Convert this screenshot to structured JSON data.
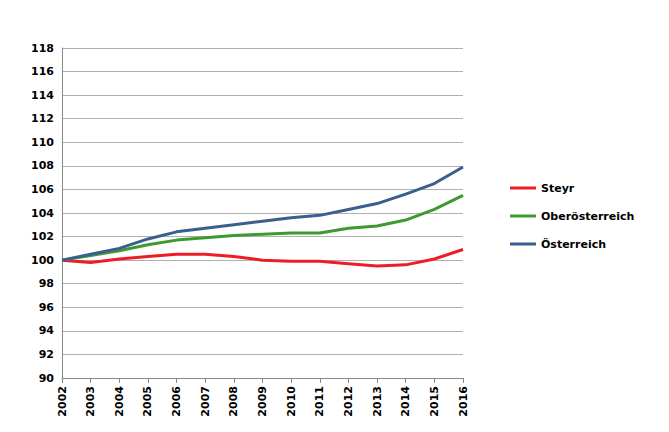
{
  "chart_data": {
    "type": "line",
    "categories": [
      "2002",
      "2003",
      "2004",
      "2005",
      "2006",
      "2007",
      "2008",
      "2009",
      "2010",
      "2011",
      "2012",
      "2013",
      "2014",
      "2015",
      "2016"
    ],
    "series": [
      {
        "name": "Steyr",
        "color": "#ee1c25",
        "values": [
          100,
          99.8,
          100.1,
          100.3,
          100.5,
          100.5,
          100.3,
          100.0,
          99.9,
          99.9,
          99.7,
          99.5,
          99.6,
          100.1,
          100.9
        ]
      },
      {
        "name": "Oberösterreich",
        "color": "#3c9a2e",
        "values": [
          100,
          100.4,
          100.8,
          101.3,
          101.7,
          101.9,
          102.1,
          102.2,
          102.3,
          102.3,
          102.7,
          102.9,
          103.4,
          104.3,
          105.5
        ]
      },
      {
        "name": "Österreich",
        "color": "#3a5f8f",
        "values": [
          100,
          100.5,
          101.0,
          101.8,
          102.4,
          102.7,
          103.0,
          103.3,
          103.6,
          103.8,
          104.3,
          104.8,
          105.6,
          106.5,
          107.9
        ]
      }
    ],
    "ylim": [
      90,
      118
    ],
    "yticks": [
      90,
      92,
      94,
      96,
      98,
      100,
      102,
      104,
      106,
      108,
      110,
      112,
      114,
      116,
      118
    ],
    "grid": true,
    "legend": "right"
  }
}
